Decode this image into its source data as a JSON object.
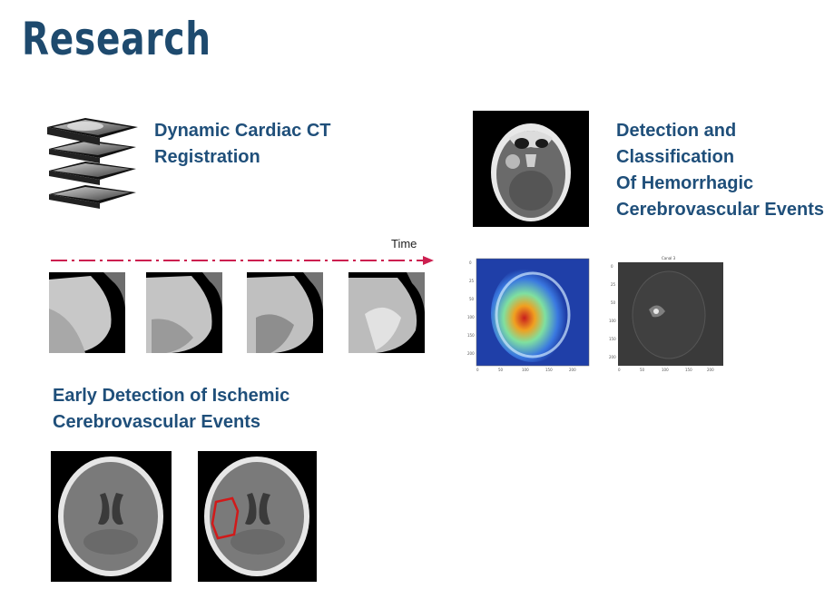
{
  "slide": {
    "title": "Research",
    "sections": {
      "cardiac": {
        "heading_lines": [
          "Dynamic Cardiac CT",
          "Registration"
        ],
        "time_label": "Time"
      },
      "hemorrhagic": {
        "heading_lines": [
          "Detection and",
          "Classification",
          "Of Hemorrhagic",
          "Cerebrovascular Events"
        ],
        "map_title": "Canal 3"
      },
      "ischemic": {
        "heading_lines": [
          "Early Detection of Ischemic",
          "Cerebrovascular Events"
        ]
      }
    },
    "colors": {
      "title": "#1e4a6e",
      "heading": "#1f4f7a",
      "arrow": "#cc1f4f",
      "lesion": "#d11a1a"
    }
  }
}
